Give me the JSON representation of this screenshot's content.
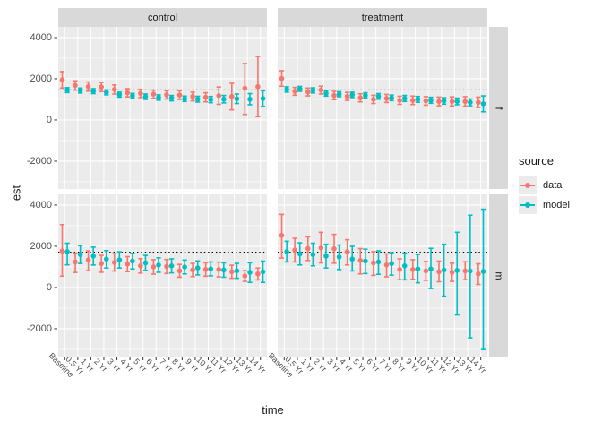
{
  "axes": {
    "y_label": "est",
    "x_label": "time",
    "y_tick_labels": [
      "4000",
      "2000",
      "0",
      "-2000"
    ]
  },
  "legend": {
    "title": "source",
    "items": [
      {
        "label": "data",
        "color": "#F8766D"
      },
      {
        "label": "model",
        "color": "#00BFC4"
      }
    ]
  },
  "colors": {
    "panel_bg": "#EBEBEB",
    "strip_bg": "#D9D9D9",
    "grid": "#FFFFFF",
    "axis_text": "#4D4D4D",
    "tick_mark": "#333333",
    "ref_line": "#000000",
    "data_series": "#F8766D",
    "model_series": "#00BFC4"
  },
  "chart_data": {
    "type": "pointrange",
    "title": "",
    "xlabel": "time",
    "ylabel": "est",
    "columns": [
      "control",
      "treatment"
    ],
    "rows": [
      "f",
      "m"
    ],
    "x": [
      "Baseline",
      "0.5 Yr",
      "1 Yr",
      "2 Yr",
      "3 Yr",
      "4 Yr",
      "5 Yr",
      "6 Yr",
      "7 Yr",
      "8 Yr",
      "9 Yr",
      "10 Yr",
      "11 Yr",
      "12 Yr",
      "13 Yr",
      "14 Yr"
    ],
    "ylim": [
      -3350,
      4520
    ],
    "y_ticks": [
      4000,
      2000,
      0,
      -2000
    ],
    "ref_lines": {
      "f": 1460,
      "m": 1715
    },
    "legend_position": "right",
    "panels": [
      {
        "col": "control",
        "row": "f",
        "series": [
          {
            "name": "data",
            "est": [
              1950,
              1680,
              1620,
              1600,
              1480,
              1320,
              1290,
              1250,
              1220,
              1210,
              1140,
              1100,
              1180,
              1140,
              1540,
              1620
            ],
            "lo": [
              1550,
              1450,
              1400,
              1380,
              1260,
              1120,
              1090,
              1050,
              1020,
              1000,
              930,
              880,
              760,
              490,
              270,
              160
            ],
            "hi": [
              2350,
              1900,
              1840,
              1820,
              1700,
              1520,
              1490,
              1450,
              1420,
              1420,
              1350,
              1320,
              1600,
              1780,
              2740,
              3080
            ]
          },
          {
            "name": "model",
            "est": [
              1450,
              1430,
              1400,
              1340,
              1230,
              1170,
              1130,
              1090,
              1060,
              1030,
              1010,
              990,
              1010,
              1030,
              1010,
              1040
            ],
            "lo": [
              1330,
              1310,
              1280,
              1220,
              1110,
              1050,
              1000,
              960,
              930,
              900,
              870,
              840,
              830,
              800,
              740,
              660
            ],
            "hi": [
              1570,
              1550,
              1520,
              1460,
              1350,
              1290,
              1260,
              1220,
              1190,
              1160,
              1150,
              1140,
              1190,
              1260,
              1280,
              1420
            ]
          }
        ]
      },
      {
        "col": "treatment",
        "row": "f",
        "series": [
          {
            "name": "data",
            "est": [
              2015,
              1390,
              1360,
              1450,
              1190,
              1145,
              1075,
              1000,
              1045,
              955,
              955,
              925,
              900,
              900,
              900,
              855
            ],
            "lo": [
              1640,
              1200,
              1170,
              1260,
              990,
              950,
              880,
              800,
              850,
              760,
              750,
              720,
              690,
              680,
              670,
              600
            ],
            "hi": [
              2390,
              1580,
              1550,
              1640,
              1390,
              1340,
              1270,
              1200,
              1240,
              1150,
              1160,
              1130,
              1110,
              1120,
              1130,
              1110
            ]
          },
          {
            "name": "model",
            "est": [
              1480,
              1510,
              1435,
              1290,
              1250,
              1220,
              1190,
              1145,
              1075,
              1045,
              1000,
              955,
              925,
              900,
              855,
              785
            ],
            "lo": [
              1350,
              1390,
              1310,
              1160,
              1130,
              1090,
              1060,
              1010,
              940,
              900,
              860,
              810,
              770,
              740,
              690,
              400
            ],
            "hi": [
              1610,
              1630,
              1560,
              1420,
              1370,
              1350,
              1320,
              1280,
              1210,
              1190,
              1140,
              1100,
              1080,
              1060,
              1020,
              1170
            ]
          }
        ]
      },
      {
        "col": "control",
        "row": "m",
        "series": [
          {
            "name": "data",
            "est": [
              1770,
              1240,
              1340,
              1165,
              1220,
              1135,
              1050,
              1000,
              1020,
              810,
              850,
              875,
              875,
              765,
              560,
              660
            ],
            "lo": [
              550,
              730,
              820,
              740,
              800,
              770,
              700,
              650,
              680,
              500,
              530,
              550,
              520,
              450,
              300,
              370
            ],
            "hi": [
              3050,
              1670,
              1780,
              1560,
              1640,
              1500,
              1400,
              1350,
              1360,
              1120,
              1170,
              1200,
              1230,
              1080,
              820,
              950
            ]
          },
          {
            "name": "model",
            "est": [
              1740,
              1600,
              1525,
              1380,
              1340,
              1280,
              1195,
              1090,
              1050,
              995,
              950,
              905,
              850,
              810,
              735,
              765
            ],
            "lo": [
              1100,
              1165,
              1090,
              950,
              950,
              900,
              830,
              740,
              710,
              660,
              610,
              570,
              500,
              450,
              250,
              250
            ],
            "hi": [
              2150,
              2030,
              1960,
              1790,
              1730,
              1660,
              1560,
              1440,
              1390,
              1330,
              1290,
              1240,
              1200,
              1170,
              1200,
              1280
            ]
          }
        ]
      },
      {
        "col": "treatment",
        "row": "m",
        "series": [
          {
            "name": "data",
            "est": [
              2530,
              1815,
              1890,
              1915,
              1880,
              1740,
              1310,
              1195,
              1095,
              875,
              875,
              805,
              765,
              735,
              805,
              660
            ],
            "lo": [
              1430,
              1240,
              1310,
              1195,
              1180,
              1095,
              660,
              590,
              520,
              380,
              400,
              350,
              280,
              300,
              380,
              150
            ],
            "hi": [
              3550,
              2390,
              2460,
              2680,
              2580,
              2320,
              1890,
              1740,
              1630,
              1390,
              1350,
              1260,
              1280,
              1180,
              1250,
              1150
            ]
          },
          {
            "name": "model",
            "est": [
              1740,
              1630,
              1600,
              1525,
              1480,
              1380,
              1285,
              1240,
              1165,
              1050,
              905,
              900,
              850,
              830,
              800,
              780
            ],
            "lo": [
              1240,
              1095,
              1050,
              950,
              875,
              805,
              680,
              640,
              600,
              375,
              230,
              -50,
              -420,
              -1330,
              -2440,
              -3010
            ],
            "hi": [
              2245,
              2170,
              2150,
              2100,
              2060,
              2000,
              1860,
              1780,
              1690,
              1670,
              1600,
              1900,
              2100,
              2680,
              3510,
              3800
            ]
          }
        ]
      }
    ]
  }
}
